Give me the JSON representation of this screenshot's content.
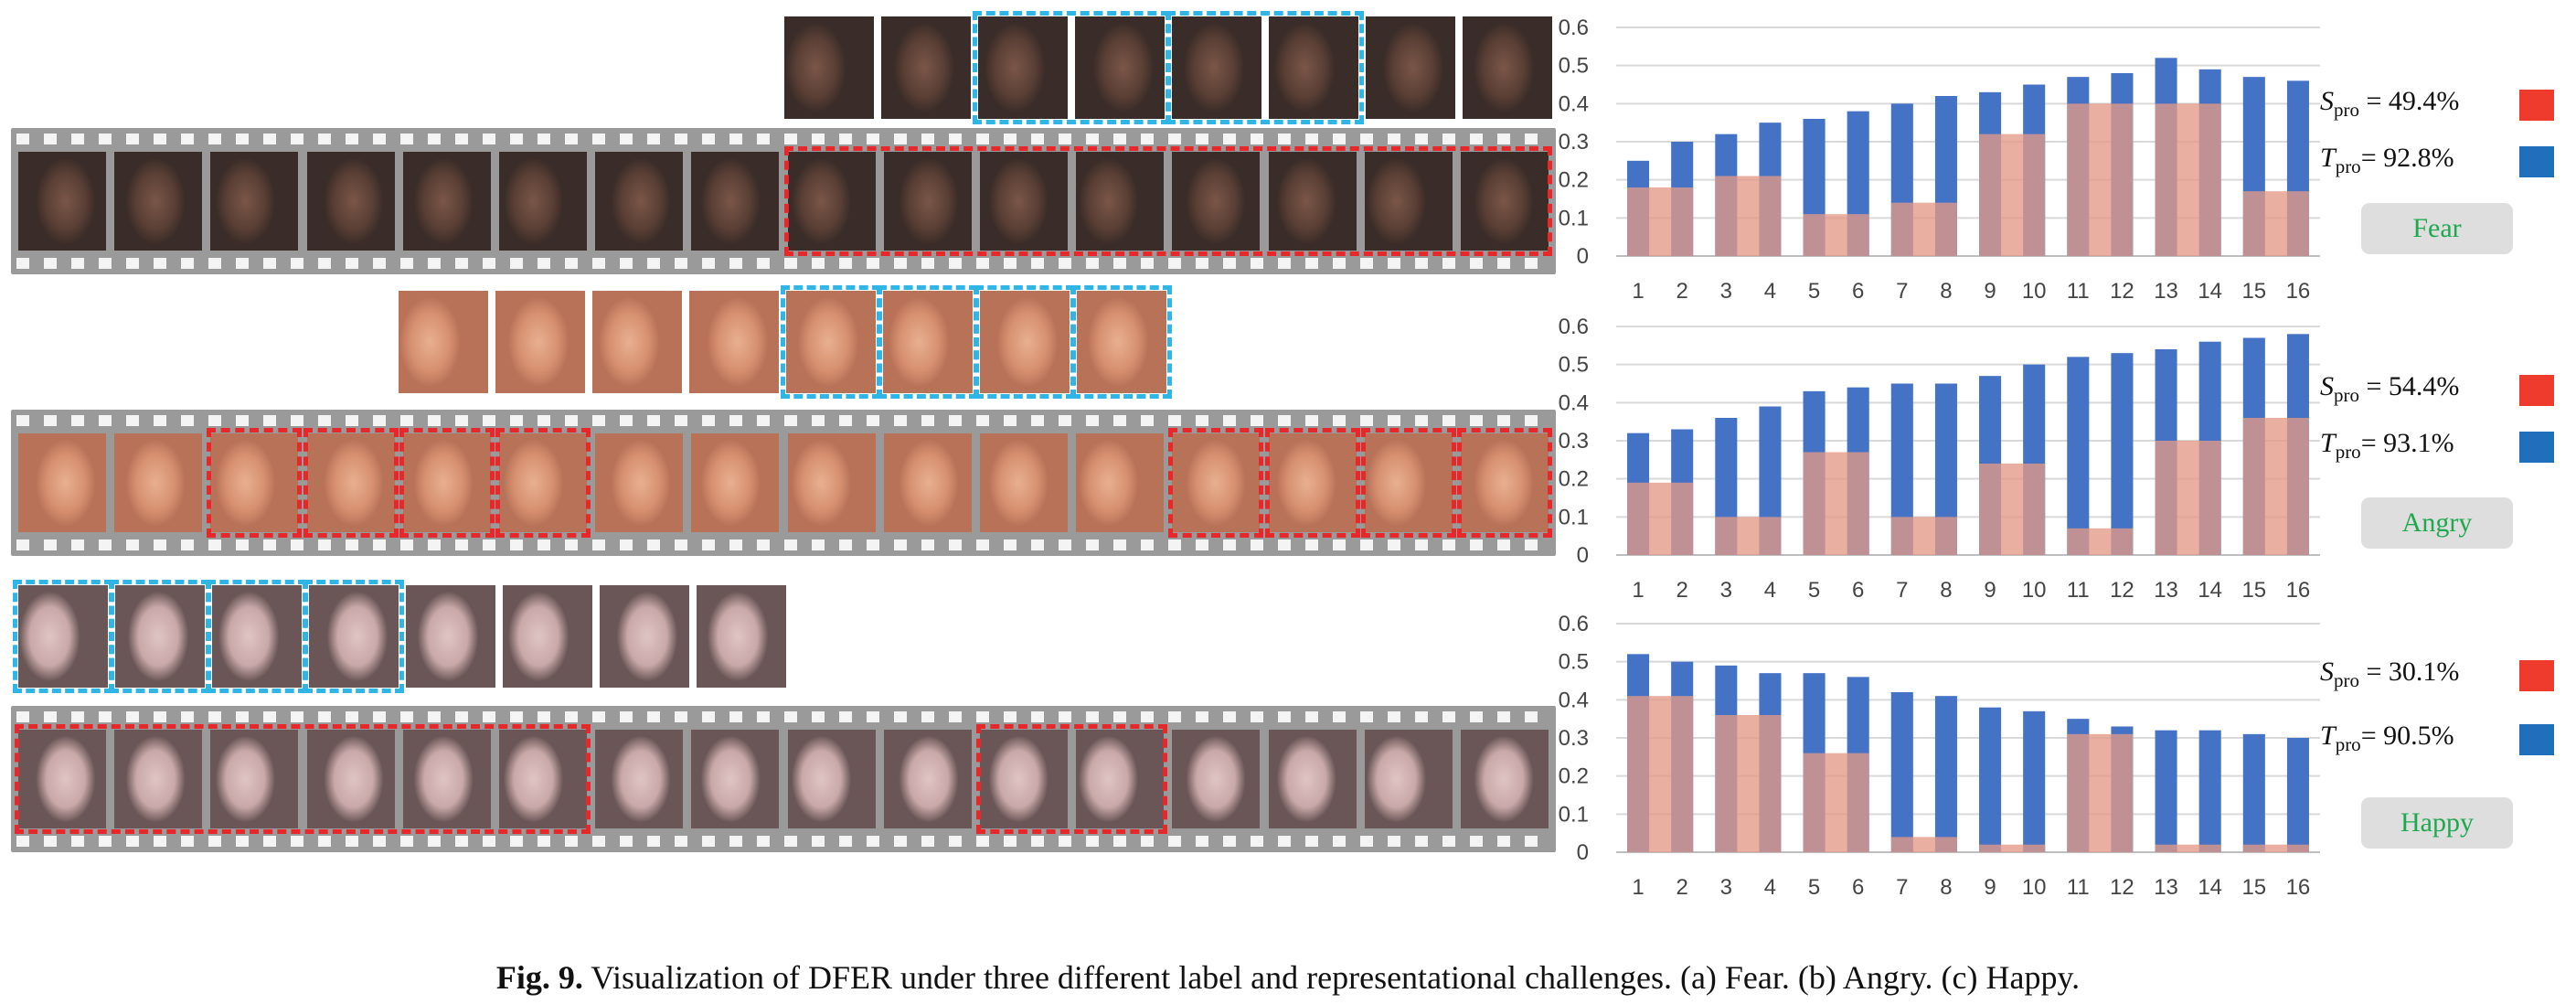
{
  "colors": {
    "student_bar": "#e39a87",
    "teacher_bar": "#4472c4",
    "student_swatch": "#ef3a2e",
    "teacher_swatch": "#1f6fbd",
    "label_text": "#1ea84f",
    "red_box": "#e8272a",
    "blue_box": "#2fb6e6"
  },
  "caption": {
    "fig": "Fig. 9.",
    "text": " Visualization of DFER under three different label and representational challenges. (a) Fear. (b) Angry. (c) Happy."
  },
  "panels": [
    {
      "label": "Fear",
      "s_pro": "= 49.4%",
      "t_pro": "= 92.8%",
      "skin": [
        "#5a3f35",
        "#7a5648",
        "#3a2c28"
      ],
      "top_frames": 8,
      "top_blue": [
        [
          2,
          3
        ],
        [
          4,
          5
        ]
      ],
      "film_red": [
        [
          8,
          15
        ]
      ]
    },
    {
      "label": "Angry",
      "s_pro": "= 54.4%",
      "t_pro": "= 93.1%",
      "skin": [
        "#d69070",
        "#e8b090",
        "#b87258"
      ],
      "top_frames": 8,
      "top_blue": [
        [
          4,
          4
        ],
        [
          5,
          5
        ],
        [
          6,
          6
        ],
        [
          7,
          7
        ]
      ],
      "film_red": [
        [
          2,
          2
        ],
        [
          3,
          3
        ],
        [
          4,
          4
        ],
        [
          5,
          5
        ],
        [
          12,
          12
        ],
        [
          13,
          13
        ],
        [
          14,
          14
        ],
        [
          15,
          15
        ]
      ]
    },
    {
      "label": "Happy",
      "s_pro": "= 30.1%",
      "t_pro": "= 90.5%",
      "skin": [
        "#c9a8a8",
        "#e0c4c4",
        "#6a5656"
      ],
      "top_frames": 8,
      "top_blue": [
        [
          0,
          0
        ],
        [
          1,
          1
        ],
        [
          2,
          2
        ],
        [
          3,
          3
        ]
      ],
      "film_red": [
        [
          0,
          5
        ],
        [
          10,
          11
        ]
      ]
    }
  ],
  "chart_data": [
    {
      "type": "bar",
      "categories": [
        "1",
        "2",
        "3",
        "4",
        "5",
        "6",
        "7",
        "8",
        "9",
        "10",
        "11",
        "12",
        "13",
        "14",
        "15",
        "16"
      ],
      "ylim": [
        0,
        0.6
      ],
      "yticks": [
        "0",
        "0.1",
        "0.2",
        "0.3",
        "0.4",
        "0.5",
        "0.6"
      ],
      "series": [
        {
          "values": [
            0.25,
            0.3,
            0.32,
            0.35,
            0.36,
            0.38,
            0.4,
            0.42,
            0.43,
            0.45,
            0.47,
            0.48,
            0.52,
            0.49,
            0.47,
            0.46
          ]
        },
        {
          "values": [
            0.18,
            null,
            0.21,
            null,
            0.11,
            null,
            0.14,
            null,
            0.32,
            null,
            0.4,
            null,
            0.4,
            null,
            0.17,
            null
          ]
        }
      ]
    },
    {
      "type": "bar",
      "categories": [
        "1",
        "2",
        "3",
        "4",
        "5",
        "6",
        "7",
        "8",
        "9",
        "10",
        "11",
        "12",
        "13",
        "14",
        "15",
        "16"
      ],
      "ylim": [
        0,
        0.6
      ],
      "yticks": [
        "0",
        "0.1",
        "0.2",
        "0.3",
        "0.4",
        "0.5",
        "0.6"
      ],
      "series": [
        {
          "values": [
            0.32,
            0.33,
            0.36,
            0.39,
            0.43,
            0.44,
            0.45,
            0.45,
            0.47,
            0.5,
            0.52,
            0.53,
            0.54,
            0.56,
            0.57,
            0.58
          ]
        },
        {
          "values": [
            0.19,
            null,
            0.1,
            null,
            0.27,
            null,
            0.1,
            null,
            0.24,
            null,
            0.07,
            null,
            0.3,
            null,
            0.36,
            null
          ]
        }
      ]
    },
    {
      "type": "bar",
      "categories": [
        "1",
        "2",
        "3",
        "4",
        "5",
        "6",
        "7",
        "8",
        "9",
        "10",
        "11",
        "12",
        "13",
        "14",
        "15",
        "16"
      ],
      "ylim": [
        0,
        0.6
      ],
      "yticks": [
        "0",
        "0.1",
        "0.2",
        "0.3",
        "0.4",
        "0.5",
        "0.6"
      ],
      "series": [
        {
          "values": [
            0.52,
            0.5,
            0.49,
            0.47,
            0.47,
            0.46,
            0.42,
            0.41,
            0.38,
            0.37,
            0.35,
            0.33,
            0.32,
            0.32,
            0.31,
            0.3
          ]
        },
        {
          "values": [
            0.41,
            null,
            0.36,
            null,
            0.26,
            null,
            0.04,
            null,
            0.02,
            null,
            0.31,
            null,
            0.02,
            null,
            0.02,
            null
          ]
        }
      ]
    }
  ]
}
